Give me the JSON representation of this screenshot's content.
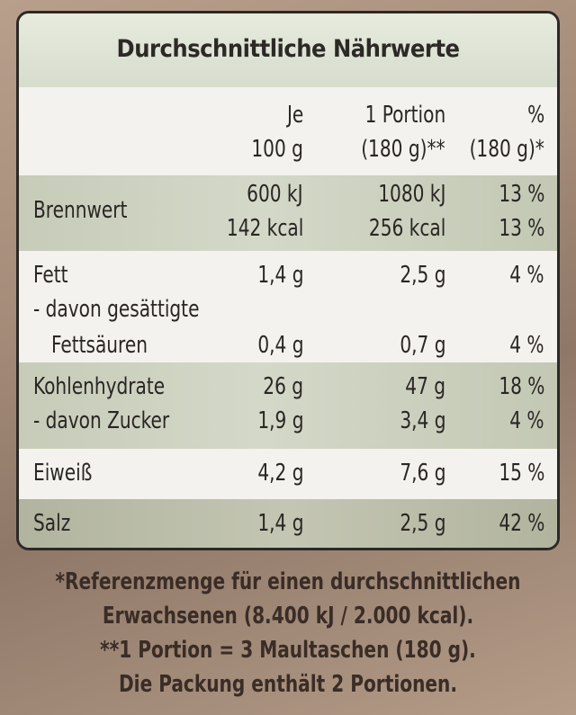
{
  "title": "Durchschnittliche Nährwerte",
  "header": {
    "col1_line1": "Je",
    "col1_line2": "100 g",
    "col2_line1": "1 Portion",
    "col2_line2": "(180 g)**",
    "col3_line1": "%",
    "col3_line2": "(180 g)*"
  },
  "rows": {
    "brennwert": {
      "name": "Brennwert",
      "kj_100": "600 kJ",
      "kj_portion": "1080 kJ",
      "kj_pct": "13 %",
      "kcal_100": "142 kcal",
      "kcal_portion": "256 kcal",
      "kcal_pct": "13 %"
    },
    "fett": {
      "name": "Fett",
      "per_100": "1,4 g",
      "portion": "2,5 g",
      "pct": "4 %"
    },
    "gesaettigte": {
      "name_line1": "- davon gesättigte",
      "name_line2": "Fettsäuren",
      "per_100": "0,4 g",
      "portion": "0,7 g",
      "pct": "4 %"
    },
    "kohlenhydrate": {
      "name": "Kohlenhydrate",
      "per_100": "26 g",
      "portion": "47 g",
      "pct": "18 %"
    },
    "zucker": {
      "name": "- davon Zucker",
      "per_100": "1,9 g",
      "portion": "3,4 g",
      "pct": "4 %"
    },
    "eiweiss": {
      "name": "Eiweiß",
      "per_100": "4,2 g",
      "portion": "7,6 g",
      "pct": "15 %"
    },
    "salz": {
      "name": "Salz",
      "per_100": "1,4 g",
      "portion": "2,5 g",
      "pct": "42 %"
    }
  },
  "footer": {
    "line1": "*Referenzmenge für einen durchschnittlichen",
    "line2": "Erwachsenen (8.400 kJ / 2.000 kcal).",
    "line3": "**1 Portion = 3 Maultaschen (180 g).",
    "line4": "Die Packung enthält 2 Portionen."
  },
  "colors": {
    "label_bg": "#f1f0ea",
    "band_green": "#c7ccb9",
    "band_dark": "#b1b49e",
    "border": "#2c2926",
    "package_brown": "#a58c79"
  }
}
